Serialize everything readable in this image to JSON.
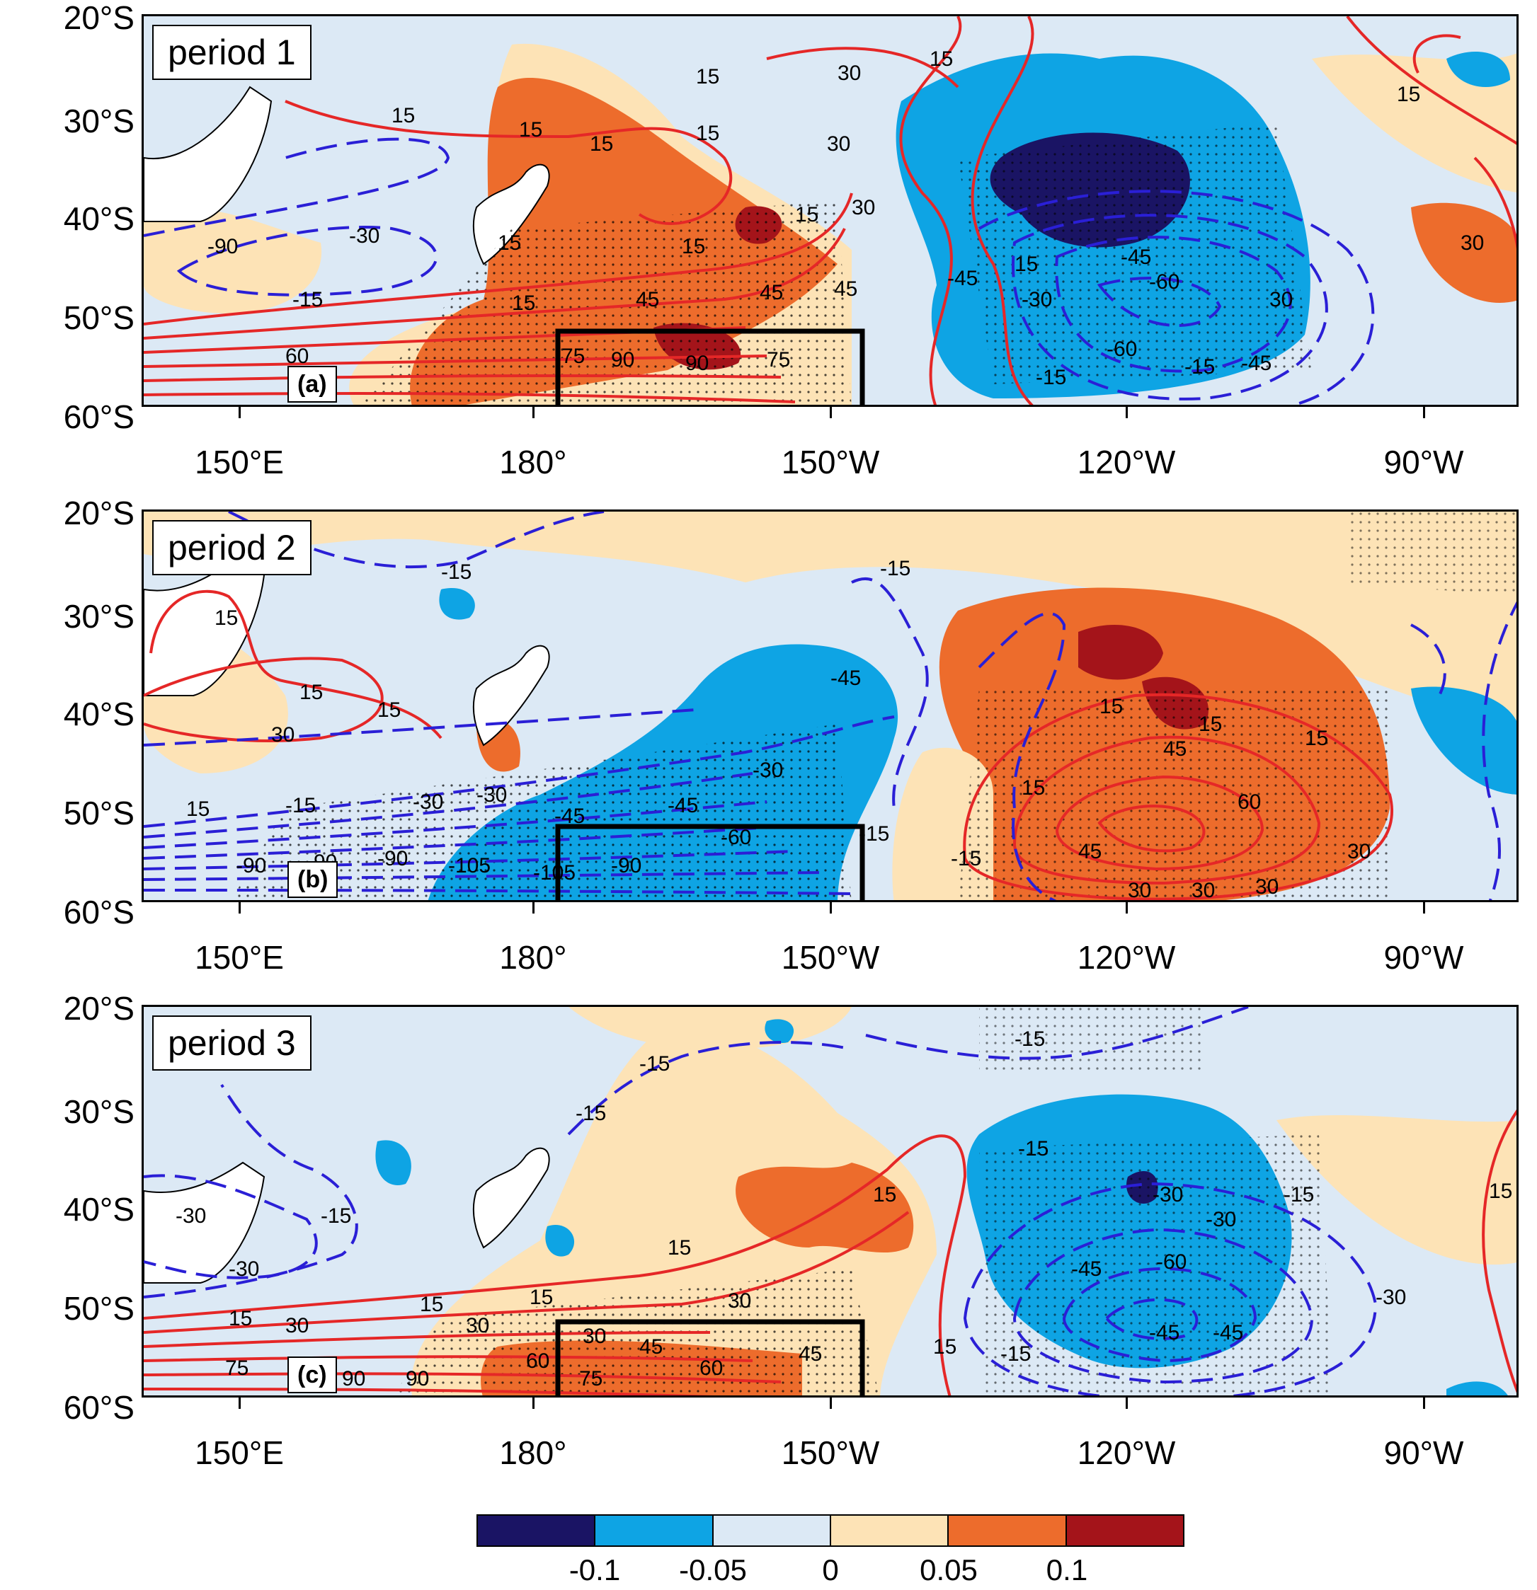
{
  "panels": [
    {
      "period_label": "period 1",
      "panel_letter": "(a)"
    },
    {
      "period_label": "period 2",
      "panel_letter": "(b)"
    },
    {
      "period_label": "period 3",
      "panel_letter": "(c)"
    }
  ],
  "axes": {
    "lat_labels": [
      "20°S",
      "30°S",
      "40°S",
      "50°S",
      "60°S"
    ],
    "lon_labels": [
      "150°E",
      "180°",
      "150°W",
      "120°W",
      "90°W"
    ]
  },
  "contour_labels": {
    "p1": [
      "15",
      "15",
      "15",
      "15",
      "30",
      "15",
      "15",
      "30",
      "15",
      "30",
      "15",
      "15",
      "-30",
      "-15",
      "15",
      "45",
      "45",
      "90",
      "75",
      "90",
      "75",
      "60",
      "45",
      "-15",
      "-60",
      "-45",
      "-60",
      "-45",
      "-30",
      "-15",
      "-90",
      "30",
      "15",
      "-45",
      "15",
      "30"
    ],
    "p2": [
      "-15",
      "15",
      "15",
      "15",
      "30",
      "15",
      "-15",
      "-30",
      "-30",
      "-45",
      "-90",
      "-90",
      "-90",
      "-105",
      "-105",
      "-90",
      "-60",
      "-15",
      "-15",
      "-45",
      "-30",
      "15",
      "15",
      "30",
      "45",
      "60",
      "30",
      "30",
      "30",
      "45",
      "15",
      "15",
      "-45",
      "-15"
    ],
    "p3": [
      "-15",
      "-15",
      "-15",
      "-30",
      "-15",
      "-30",
      "15",
      "30",
      "15",
      "15",
      "30",
      "45",
      "30",
      "60",
      "75",
      "90",
      "90",
      "75",
      "60",
      "45",
      "15",
      "30",
      "15",
      "-30",
      "-15",
      "-30",
      "-45",
      "-60",
      "-45",
      "-45",
      "-30",
      "15",
      "-15",
      "-15",
      "15"
    ]
  },
  "colorbar": {
    "labels": [
      "-0.1",
      "-0.05",
      "0",
      "0.05",
      "0.1"
    ],
    "colors": [
      "#1a1464",
      "#0ea4e4",
      "#dce9f5",
      "#fde3b6",
      "#ed6c2c",
      "#a4141a"
    ]
  }
}
